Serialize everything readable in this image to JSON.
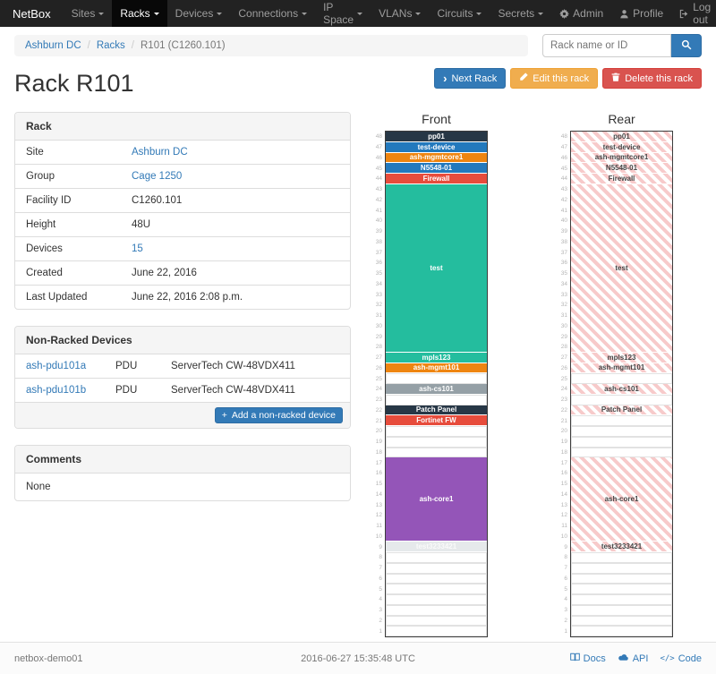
{
  "navbar": {
    "brand": "NetBox",
    "items": [
      {
        "label": "Sites"
      },
      {
        "label": "Racks"
      },
      {
        "label": "Devices"
      },
      {
        "label": "Connections"
      },
      {
        "label": "IP Space"
      },
      {
        "label": "VLANs"
      },
      {
        "label": "Circuits"
      },
      {
        "label": "Secrets"
      }
    ],
    "right": [
      {
        "label": "Admin"
      },
      {
        "label": "Profile"
      },
      {
        "label": "Log out"
      }
    ]
  },
  "breadcrumb": {
    "items": [
      "Ashburn DC",
      "Racks",
      "R101 (C1260.101)"
    ]
  },
  "search": {
    "placeholder": "Rack name or ID"
  },
  "page": {
    "title": "Rack R101"
  },
  "actions": {
    "next": "Next Rack",
    "edit": "Edit this rack",
    "delete": "Delete this rack"
  },
  "rack_info": {
    "title": "Rack",
    "rows": [
      {
        "label": "Site",
        "value": "Ashburn DC"
      },
      {
        "label": "Group",
        "value": "Cage 1250"
      },
      {
        "label": "Facility ID",
        "value": "C1260.101"
      },
      {
        "label": "Height",
        "value": "48U"
      },
      {
        "label": "Devices",
        "value": "15"
      },
      {
        "label": "Created",
        "value": "June 22, 2016"
      },
      {
        "label": "Last Updated",
        "value": "June 22, 2016 2:08 p.m."
      }
    ]
  },
  "non_racked": {
    "title": "Non-Racked Devices",
    "rows": [
      {
        "name": "ash-pdu101a",
        "role": "PDU",
        "type": "ServerTech CW-48VDX411"
      },
      {
        "name": "ash-pdu101b",
        "role": "PDU",
        "type": "ServerTech CW-48VDX411"
      }
    ],
    "add_label": "Add a non-racked device"
  },
  "comments": {
    "title": "Comments",
    "body": "None"
  },
  "elevations": {
    "front_title": "Front",
    "rear_title": "Rear",
    "height_units": 48,
    "colors": {
      "dark": "#273746",
      "blue": "#2379bd",
      "orange": "#ee8511",
      "red": "#e74c3c",
      "teal": "#24bd9e",
      "purple": "#9455b8",
      "gray": "#95a0a6",
      "light": "#e6e9eb"
    },
    "front": [
      {
        "u": 1,
        "label": "pp01",
        "color": "dark"
      },
      {
        "u": 1,
        "label": "test-device",
        "color": "blue"
      },
      {
        "u": 1,
        "label": "ash-mgmtcore1",
        "color": "orange"
      },
      {
        "u": 1,
        "label": "N5548-01",
        "color": "blue"
      },
      {
        "u": 1,
        "label": "Firewall",
        "color": "red"
      },
      {
        "u": 16,
        "label": "test",
        "color": "teal"
      },
      {
        "u": 1,
        "label": "mpls123",
        "color": "teal"
      },
      {
        "u": 1,
        "label": "ash-mgmt101",
        "color": "orange"
      },
      {
        "u": 1,
        "empty": true
      },
      {
        "u": 1,
        "label": "ash-cs101",
        "color": "gray"
      },
      {
        "u": 1,
        "empty": true
      },
      {
        "u": 1,
        "label": "Patch Panel",
        "color": "dark"
      },
      {
        "u": 1,
        "label": "Fortinet FW",
        "color": "red"
      },
      {
        "u": 3,
        "empty": true
      },
      {
        "u": 8,
        "label": "ash-core1",
        "color": "purple"
      },
      {
        "u": 1,
        "label": "test3233421",
        "color": "light",
        "text": "#fafafa"
      },
      {
        "u": 8,
        "empty": true
      }
    ],
    "rear": [
      {
        "u": 1,
        "label": "pp01",
        "hatched": true
      },
      {
        "u": 1,
        "label": "test-device",
        "hatched": true
      },
      {
        "u": 1,
        "label": "ash-mgmtcore1",
        "hatched": true
      },
      {
        "u": 1,
        "label": "N5548-01",
        "hatched": true
      },
      {
        "u": 1,
        "label": "Firewall",
        "hatched": true
      },
      {
        "u": 16,
        "label": "test",
        "hatched": true
      },
      {
        "u": 1,
        "label": "mpls123",
        "hatched": true
      },
      {
        "u": 1,
        "label": "ash-mgmt101",
        "hatched": true
      },
      {
        "u": 1,
        "empty": true
      },
      {
        "u": 1,
        "label": "ash-cs101",
        "hatched": true
      },
      {
        "u": 1,
        "empty": true
      },
      {
        "u": 1,
        "label": "Patch Panel",
        "hatched": true
      },
      {
        "u": 1,
        "empty": true
      },
      {
        "u": 3,
        "empty": true
      },
      {
        "u": 8,
        "label": "ash-core1",
        "hatched": true
      },
      {
        "u": 1,
        "label": "test3233421",
        "hatched": true
      },
      {
        "u": 8,
        "empty": true
      }
    ]
  },
  "footer": {
    "hostname": "netbox-demo01",
    "timestamp": "2016-06-27 15:35:48 UTC",
    "links": [
      {
        "label": "Docs"
      },
      {
        "label": "API"
      },
      {
        "label": "Code"
      }
    ]
  }
}
